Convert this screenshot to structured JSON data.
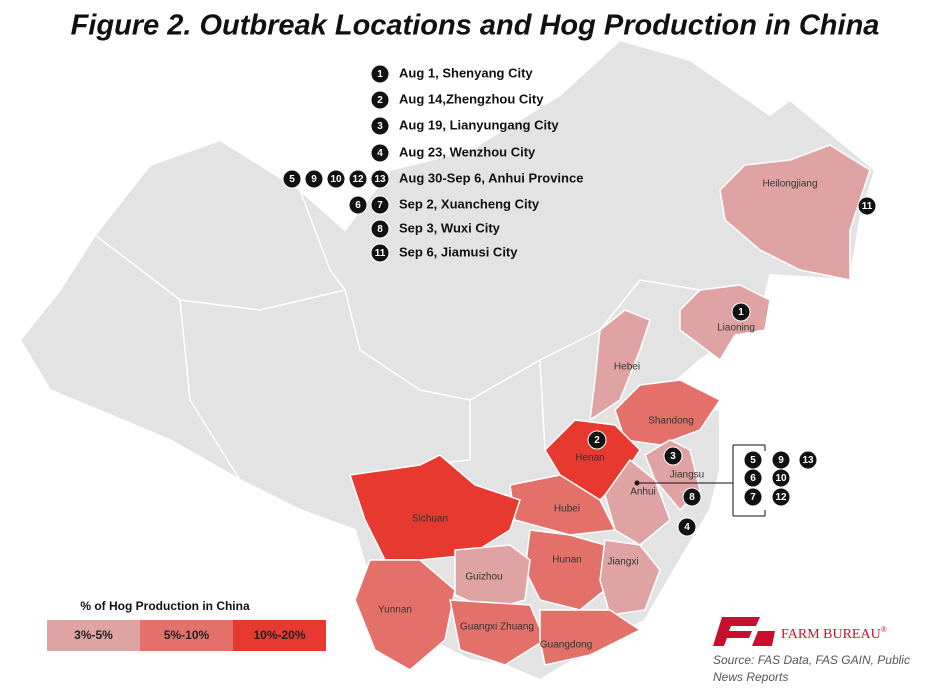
{
  "title": "Figure 2. Outbreak Locations and Hog Production in China",
  "events": [
    {
      "markers": [
        "1"
      ],
      "label": "Aug 1, Shenyang City"
    },
    {
      "markers": [
        "2"
      ],
      "label": "Aug 14,Zhengzhou City"
    },
    {
      "markers": [
        "3"
      ],
      "label": "Aug 19, Lianyungang City"
    },
    {
      "markers": [
        "4"
      ],
      "label": "Aug 23, Wenzhou City"
    },
    {
      "markers": [
        "5",
        "9",
        "10",
        "12",
        "13"
      ],
      "label": "Aug 30-Sep 6, Anhui Province"
    },
    {
      "markers": [
        "6",
        "7"
      ],
      "label": "Sep 2, Xuancheng City"
    },
    {
      "markers": [
        "8"
      ],
      "label": "Sep 3, Wuxi City"
    },
    {
      "markers": [
        "11"
      ],
      "label": "Sep 6, Jiamusi City"
    }
  ],
  "provinces": [
    {
      "name": "Heilongjiang",
      "tier": 0
    },
    {
      "name": "Liaoning",
      "tier": 0
    },
    {
      "name": "Hebei",
      "tier": 0
    },
    {
      "name": "Shandong",
      "tier": 1
    },
    {
      "name": "Henan",
      "tier": 2
    },
    {
      "name": "Jiangsu",
      "tier": 0
    },
    {
      "name": "Anhui",
      "tier": 0
    },
    {
      "name": "Hubei",
      "tier": 1
    },
    {
      "name": "Sichuan",
      "tier": 2
    },
    {
      "name": "Hunan",
      "tier": 1
    },
    {
      "name": "Jiangxi",
      "tier": 0
    },
    {
      "name": "Guizhou",
      "tier": 0
    },
    {
      "name": "Yunnan",
      "tier": 1
    },
    {
      "name": "Guangxi Zhuang",
      "tier": 1
    },
    {
      "name": "Guangdong",
      "tier": 1
    }
  ],
  "map_markers": [
    "11",
    "1",
    "2",
    "3",
    "8",
    "4"
  ],
  "anhui_group": [
    "5",
    "9",
    "13",
    "6",
    "10",
    "7",
    "12"
  ],
  "legend": {
    "title": "% of Hog Production in China",
    "bins": [
      {
        "label": "3%-5%",
        "color": "#dea3a2"
      },
      {
        "label": "5%-10%",
        "color": "#e4706a"
      },
      {
        "label": "10%-20%",
        "color": "#e7392f"
      }
    ]
  },
  "logo": "FARM BUREAU",
  "logo_mark": "®",
  "source": [
    "Source: FAS Data, FAS GAIN, Public",
    "News Reports"
  ]
}
